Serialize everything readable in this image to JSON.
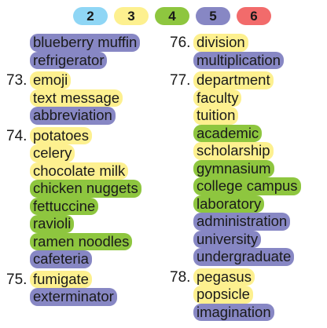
{
  "legend": [
    {
      "label": "2",
      "color": "#8fd6f5",
      "cls": "c2"
    },
    {
      "label": "3",
      "color": "#fdf08f",
      "cls": "c3"
    },
    {
      "label": "4",
      "color": "#8ec63f",
      "cls": "c4"
    },
    {
      "label": "5",
      "color": "#8787c4",
      "cls": "c5"
    },
    {
      "label": "6",
      "color": "#f26b6b",
      "cls": "c6"
    }
  ],
  "left_groups": [
    {
      "num": "",
      "words": [
        {
          "text": "blueberry muffin",
          "level": "5"
        },
        {
          "text": "refrigerator",
          "level": "5"
        }
      ]
    },
    {
      "num": "73.",
      "words": [
        {
          "text": "emoji",
          "level": "3"
        },
        {
          "text": "text message",
          "level": "3"
        },
        {
          "text": "abbreviation",
          "level": "5"
        }
      ]
    },
    {
      "num": "74.",
      "words": [
        {
          "text": "potatoes",
          "level": "3"
        },
        {
          "text": "celery",
          "level": "3"
        },
        {
          "text": "chocolate milk",
          "level": "3"
        },
        {
          "text": "chicken nuggets",
          "level": "4"
        },
        {
          "text": "fettuccine",
          "level": "4"
        },
        {
          "text": "ravioli",
          "level": "4"
        },
        {
          "text": "ramen noodles",
          "level": "4"
        },
        {
          "text": "cafeteria",
          "level": "5"
        }
      ]
    },
    {
      "num": "75.",
      "words": [
        {
          "text": "fumigate",
          "level": "3"
        },
        {
          "text": "exterminator",
          "level": "5"
        }
      ]
    }
  ],
  "right_groups": [
    {
      "num": "76.",
      "words": [
        {
          "text": "division",
          "level": "3"
        },
        {
          "text": "multiplication",
          "level": "5"
        }
      ]
    },
    {
      "num": "77.",
      "words": [
        {
          "text": "department",
          "level": "3"
        },
        {
          "text": "faculty",
          "level": "3"
        },
        {
          "text": "tuition",
          "level": "3"
        },
        {
          "text": "academic",
          "level": "4"
        },
        {
          "text": "scholarship",
          "level": "3"
        },
        {
          "text": "gymnasium",
          "level": "4"
        },
        {
          "text": "college campus",
          "level": "4"
        },
        {
          "text": "laboratory",
          "level": "4"
        },
        {
          "text": "administration",
          "level": "5"
        },
        {
          "text": "university",
          "level": "5"
        },
        {
          "text": "undergraduate",
          "level": "5"
        }
      ]
    },
    {
      "num": "78.",
      "words": [
        {
          "text": "pegasus",
          "level": "3"
        },
        {
          "text": "popsicle",
          "level": "3"
        },
        {
          "text": "imagination",
          "level": "5"
        }
      ]
    }
  ]
}
